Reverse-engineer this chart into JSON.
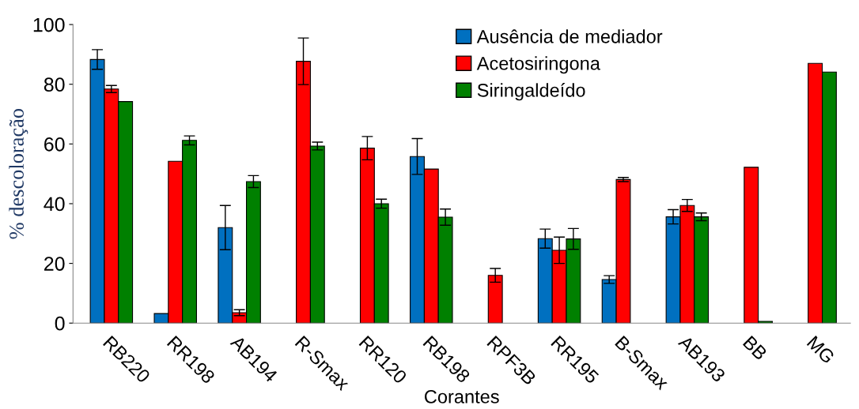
{
  "chart_data": {
    "type": "bar",
    "xlabel": "Corantes",
    "ylabel": "% descoloração",
    "categories": [
      "RB220",
      "RR198",
      "AB194",
      "R-Smax",
      "RR120",
      "RB198",
      "RPF3B",
      "RR195",
      "B-Smax",
      "AB193",
      "BB",
      "MG"
    ],
    "series": [
      {
        "name": "Ausência de mediador",
        "color": "#0070c0",
        "values": [
          88.3,
          3.2,
          32,
          null,
          null,
          55.8,
          null,
          28.3,
          14.6,
          35.6,
          null,
          null
        ],
        "errors": [
          3.3,
          null,
          7.4,
          null,
          null,
          6,
          null,
          3.2,
          1.3,
          2.4,
          null,
          null
        ]
      },
      {
        "name": "Acetosiringona",
        "color": "#ff0000",
        "values": [
          78.4,
          54.2,
          3.5,
          87.7,
          58.6,
          51.6,
          16,
          24.4,
          48.1,
          39.4,
          52.2,
          87
        ],
        "errors": [
          1.2,
          null,
          1,
          7.8,
          3.9,
          null,
          2.3,
          4.4,
          0.7,
          2,
          null,
          null
        ]
      },
      {
        "name": "Siringaldeído",
        "color": "#008000",
        "values": [
          74.2,
          61.2,
          47.4,
          59.3,
          40,
          35.5,
          null,
          28.2,
          null,
          35.6,
          0.6,
          84.1
        ],
        "errors": [
          null,
          1.5,
          2,
          1.3,
          1.5,
          2.7,
          null,
          3.5,
          null,
          1.3,
          null,
          null
        ]
      }
    ],
    "ylim": [
      0,
      100
    ],
    "yticks": [
      0,
      20,
      40,
      60,
      80,
      100
    ],
    "grid": false,
    "legend": "top right"
  }
}
